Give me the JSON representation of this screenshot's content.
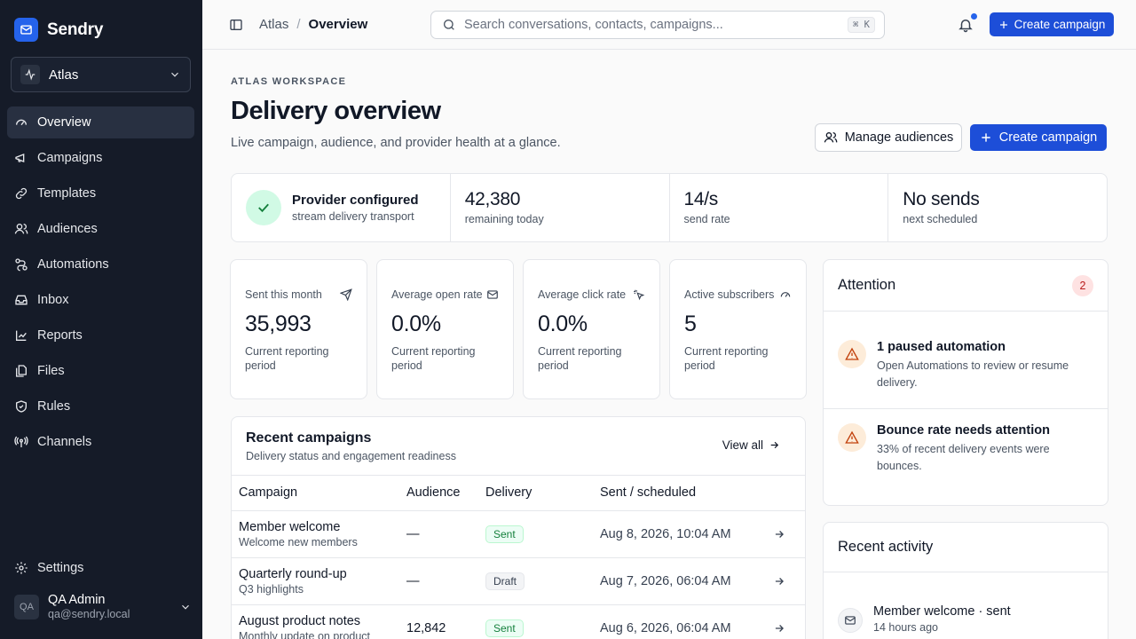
{
  "brand": {
    "name": "Sendry"
  },
  "workspace": {
    "name": "Atlas"
  },
  "nav": {
    "items": [
      {
        "label": "Overview",
        "icon": "gauge-icon"
      },
      {
        "label": "Campaigns",
        "icon": "megaphone-icon"
      },
      {
        "label": "Templates",
        "icon": "link-icon"
      },
      {
        "label": "Audiences",
        "icon": "users-icon"
      },
      {
        "label": "Automations",
        "icon": "workflow-icon"
      },
      {
        "label": "Inbox",
        "icon": "inbox-icon"
      },
      {
        "label": "Reports",
        "icon": "chart-icon"
      },
      {
        "label": "Files",
        "icon": "files-icon"
      },
      {
        "label": "Rules",
        "icon": "shield-icon"
      },
      {
        "label": "Channels",
        "icon": "radio-icon"
      }
    ],
    "settings": "Settings"
  },
  "user": {
    "initials": "QA",
    "name": "QA Admin",
    "email": "qa@sendry.local"
  },
  "topbar": {
    "crumb_workspace": "Atlas",
    "crumb_sep": "/",
    "crumb_page": "Overview",
    "search_placeholder": "Search conversations, contacts, campaigns...",
    "search_shortcut": "⌘ K",
    "create_label": "Create campaign"
  },
  "header": {
    "eyebrow": "ATLAS WORKSPACE",
    "title": "Delivery overview",
    "subtitle": "Live campaign, audience, and provider health at a glance.",
    "manage_label": "Manage audiences",
    "create_label": "Create campaign"
  },
  "strip": {
    "provider_title": "Provider configured",
    "provider_sub": "stream delivery transport",
    "remaining_value": "42,380",
    "remaining_label": "remaining today",
    "rate_value": "14/s",
    "rate_label": "send rate",
    "next_value": "No sends",
    "next_label": "next scheduled"
  },
  "stats": [
    {
      "label": "Sent this month",
      "value": "35,993",
      "note": "Current reporting period",
      "icon": "send-icon"
    },
    {
      "label": "Average open rate",
      "value": "0.0%",
      "note": "Current reporting period",
      "icon": "mail-icon"
    },
    {
      "label": "Average click rate",
      "value": "0.0%",
      "note": "Current reporting period",
      "icon": "click-icon"
    },
    {
      "label": "Active subscribers",
      "value": "5",
      "note": "Current reporting period",
      "icon": "gauge-icon"
    }
  ],
  "campaigns": {
    "title": "Recent campaigns",
    "subtitle": "Delivery status and engagement readiness",
    "view_all": "View all",
    "columns": [
      "Campaign",
      "Audience",
      "Delivery",
      "Sent / scheduled"
    ],
    "rows": [
      {
        "name": "Member welcome",
        "desc": "Welcome new members",
        "audience": "—",
        "status": "Sent",
        "date": "Aug 8, 2026, 10:04 AM"
      },
      {
        "name": "Quarterly round-up",
        "desc": "Q3 highlights",
        "audience": "—",
        "status": "Draft",
        "date": "Aug 7, 2026, 06:04 AM"
      },
      {
        "name": "August product notes",
        "desc": "Monthly update on product",
        "audience": "12,842",
        "status": "Sent",
        "date": "Aug 6, 2026, 06:04 AM"
      }
    ]
  },
  "attention": {
    "title": "Attention",
    "count": "2",
    "items": [
      {
        "title": "1 paused automation",
        "desc": "Open Automations to review or resume delivery."
      },
      {
        "title": "Bounce rate needs attention",
        "desc": "33% of recent delivery events were bounces."
      }
    ]
  },
  "activity": {
    "title": "Recent activity",
    "items": [
      {
        "title": "Member welcome · sent",
        "time": "14 hours ago"
      }
    ]
  },
  "colors": {
    "accent": "#1d4ed8",
    "sidebar": "#151b28",
    "success": "#15803d",
    "warning": "#c2410c",
    "danger": "#b91c1c"
  }
}
